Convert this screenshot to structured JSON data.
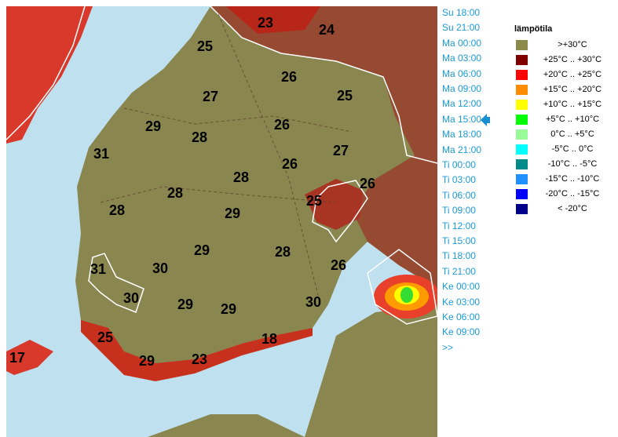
{
  "map": {
    "labels": [
      23,
      24,
      25,
      26,
      27,
      25,
      29,
      26,
      28,
      31,
      27,
      26,
      28,
      26,
      28,
      25,
      28,
      29,
      29,
      28,
      26,
      31,
      30,
      30,
      30,
      29,
      29,
      25,
      18,
      17,
      29,
      23
    ]
  },
  "times": [
    "Su 18:00",
    "Su 21:00",
    "Ma 00:00",
    "Ma 03:00",
    "Ma 06:00",
    "Ma 09:00",
    "Ma 12:00",
    "Ma 15:00",
    "Ma 18:00",
    "Ma 21:00",
    "Ti 00:00",
    "Ti 03:00",
    "Ti 06:00",
    "Ti 09:00",
    "Ti 12:00",
    "Ti 15:00",
    "Ti 18:00",
    "Ti 21:00",
    "Ke 00:00",
    "Ke 03:00",
    "Ke 06:00",
    "Ke 09:00",
    ">>"
  ],
  "legend": {
    "title": "lämpötila",
    "items": [
      {
        "label": ">+30°C",
        "color": "#8b8a4b"
      },
      {
        "label": "+25°C .. +30°C",
        "color": "#800000"
      },
      {
        "label": "+20°C .. +25°C",
        "color": "#ff0000"
      },
      {
        "label": "+15°C .. +20°C",
        "color": "#ff8c00"
      },
      {
        "label": "+10°C .. +15°C",
        "color": "#ffff00"
      },
      {
        "label": "+5°C .. +10°C",
        "color": "#00ff00"
      },
      {
        "label": "0°C .. +5°C",
        "color": "#98fb98"
      },
      {
        "label": "-5°C .. 0°C",
        "color": "#00ffff"
      },
      {
        "label": "-10°C .. -5°C",
        "color": "#008b8b"
      },
      {
        "label": "-15°C .. -10°C",
        "color": "#1e90ff"
      },
      {
        "label": "-20°C .. -15°C",
        "color": "#0000ff"
      },
      {
        "label": "< -20°C",
        "color": "#00008b"
      }
    ]
  }
}
